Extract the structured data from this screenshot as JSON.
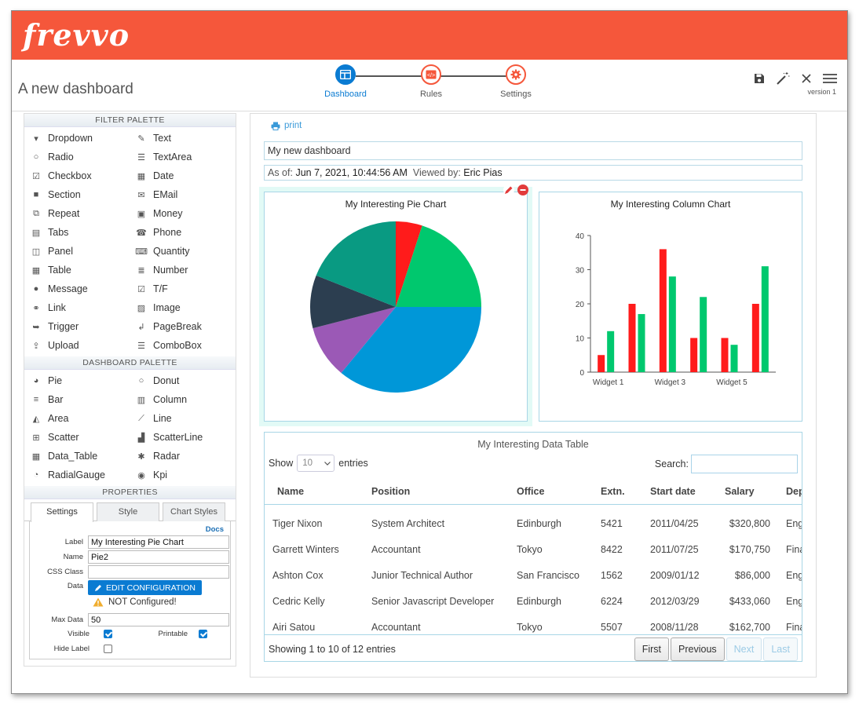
{
  "app": {
    "logo": "frevvo",
    "page_title": "A new dashboard",
    "version": "version 1"
  },
  "steps": [
    {
      "label": "Dashboard",
      "icon": "dashboard-icon",
      "active": true
    },
    {
      "label": "Rules",
      "icon": "code-icon",
      "active": false
    },
    {
      "label": "Settings",
      "icon": "gear-icon",
      "active": false
    }
  ],
  "toolbar": {
    "icons": [
      "save-icon",
      "magic-wand-icon",
      "close-icon",
      "menu-icon"
    ]
  },
  "filter_palette": {
    "title": "FILTER PALETTE",
    "items": [
      "Dropdown",
      "Text",
      "Radio",
      "TextArea",
      "Checkbox",
      "Date",
      "Section",
      "EMail",
      "Repeat",
      "Money",
      "Tabs",
      "Phone",
      "Panel",
      "Quantity",
      "Table",
      "Number",
      "Message",
      "T/F",
      "Link",
      "Image",
      "Trigger",
      "PageBreak",
      "Upload",
      "ComboBox"
    ]
  },
  "dashboard_palette": {
    "title": "DASHBOARD PALETTE",
    "items": [
      "Pie",
      "Donut",
      "Bar",
      "Column",
      "Area",
      "Line",
      "Scatter",
      "ScatterLine",
      "Data_Table",
      "Radar",
      "RadialGauge",
      "Kpi"
    ]
  },
  "properties": {
    "title": "PROPERTIES",
    "tabs": [
      "Settings",
      "Style",
      "Chart Styles"
    ],
    "docs": "Docs",
    "label_label": "Label",
    "label_value": "My Interesting Pie Chart",
    "name_label": "Name",
    "name_value": "Pie2",
    "css_label": "CSS Class",
    "css_value": "",
    "data_label": "Data",
    "edit_config": "EDIT CONFIGURATION",
    "not_configured": "NOT Configured!",
    "max_data_label": "Max Data",
    "max_data_value": "50",
    "visible_label": "Visible",
    "visible": true,
    "printable_label": "Printable",
    "printable": true,
    "hide_label_label": "Hide Label",
    "hide_label": false
  },
  "dashboard": {
    "print": "print",
    "name": "My new dashboard",
    "as_of_label": "As of:",
    "as_of_value": "Jun 7, 2021, 10:44:56 AM",
    "viewed_by_label": "Viewed by:",
    "viewed_by_value": "Eric Pias"
  },
  "chart_data": [
    {
      "type": "pie",
      "title": "My Interesting Pie Chart",
      "slices": [
        {
          "value": 5,
          "color": "#ff1b1b"
        },
        {
          "value": 20,
          "color": "#00c86e"
        },
        {
          "value": 36,
          "color": "#0097d8"
        },
        {
          "value": 10,
          "color": "#9b59b6"
        },
        {
          "value": 10,
          "color": "#2c3e50"
        },
        {
          "value": 19,
          "color": "#099a82"
        }
      ]
    },
    {
      "type": "bar",
      "title": "My Interesting Column Chart",
      "categories": [
        "Widget 1",
        "",
        "Widget 3",
        "",
        "Widget 5",
        ""
      ],
      "series": [
        {
          "values": [
            5,
            20,
            36,
            10,
            10,
            20
          ],
          "color": "#ff1b1b"
        },
        {
          "values": [
            12,
            17,
            28,
            22,
            8,
            31
          ],
          "color": "#00c86e"
        }
      ],
      "ylim": [
        0,
        40
      ],
      "yticks": [
        0,
        10,
        20,
        30,
        40
      ]
    }
  ],
  "table": {
    "title": "My Interesting Data Table",
    "show": "Show",
    "entries_value": "10",
    "entries": "entries",
    "search": "Search:",
    "columns": [
      "Name",
      "Position",
      "Office",
      "Extn.",
      "Start date",
      "Salary",
      "Department"
    ],
    "rows": [
      [
        "Tiger Nixon",
        "System Architect",
        "Edinburgh",
        "5421",
        "2011/04/25",
        "$320,800",
        "Engineering"
      ],
      [
        "Garrett Winters",
        "Accountant",
        "Tokyo",
        "8422",
        "2011/07/25",
        "$170,750",
        "Finance"
      ],
      [
        "Ashton Cox",
        "Junior Technical Author",
        "San Francisco",
        "1562",
        "2009/01/12",
        "$86,000",
        "Engineering"
      ],
      [
        "Cedric Kelly",
        "Senior Javascript Developer",
        "Edinburgh",
        "6224",
        "2012/03/29",
        "$433,060",
        "Engineering"
      ],
      [
        "Airi Satou",
        "Accountant",
        "Tokyo",
        "5507",
        "2008/11/28",
        "$162,700",
        "Finance"
      ]
    ],
    "info": "Showing 1 to 10 of 12 entries",
    "pager": [
      "First",
      "Previous",
      "Next",
      "Last"
    ]
  }
}
